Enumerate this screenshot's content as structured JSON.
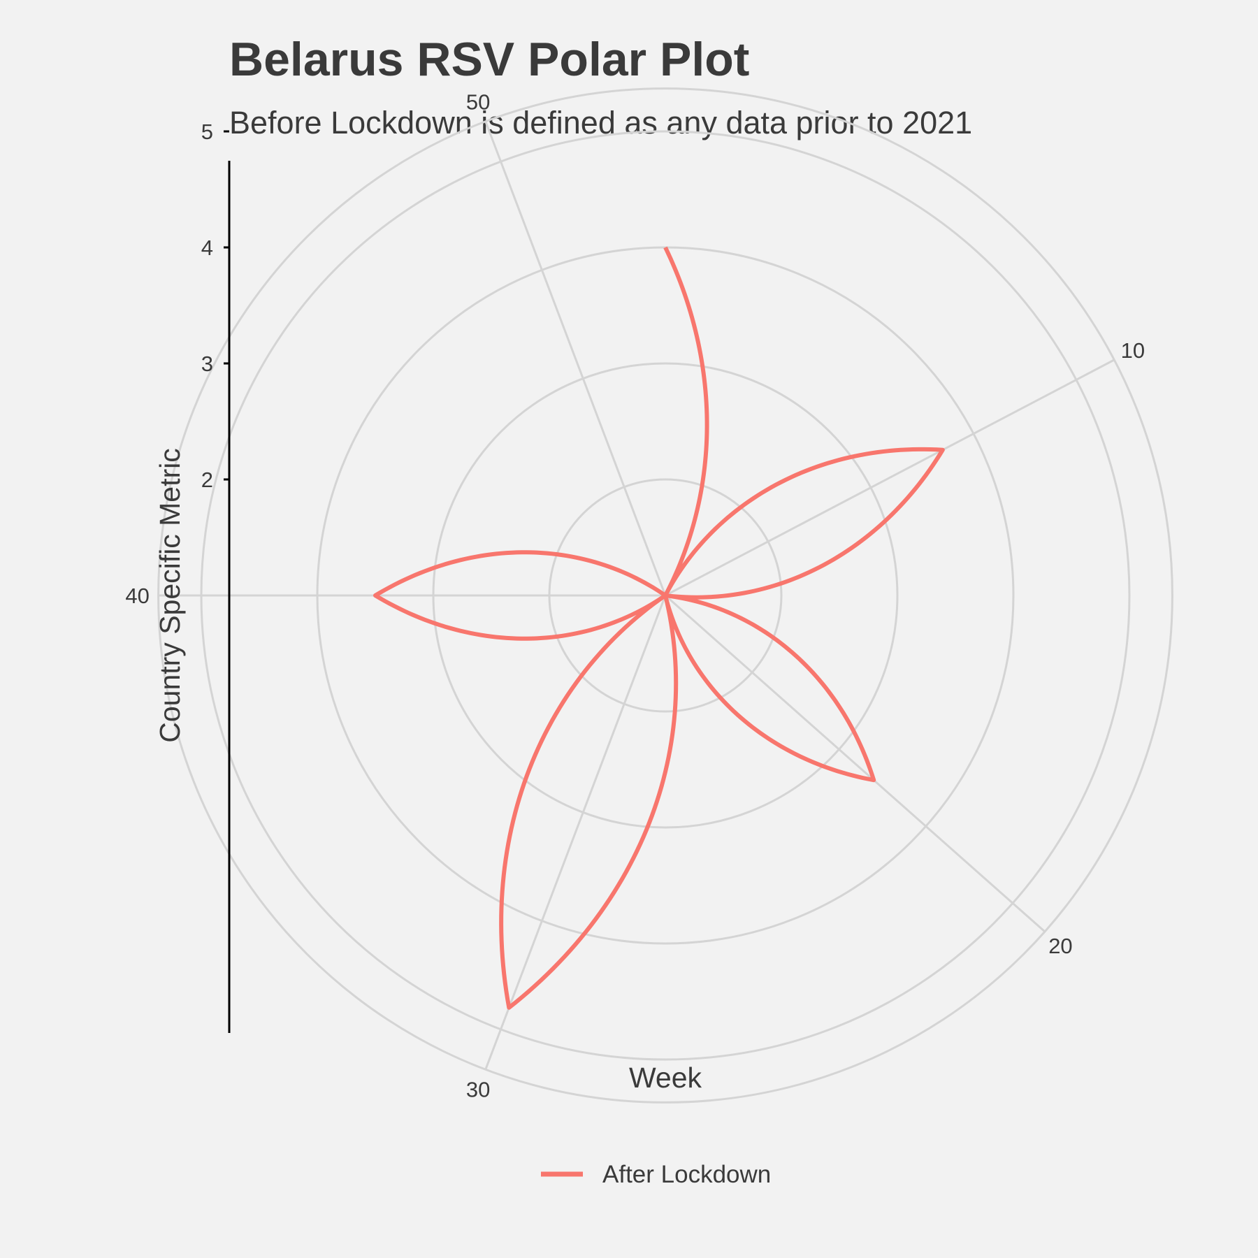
{
  "chart_data": {
    "type": "line",
    "coordinate_system": "polar",
    "title": "Belarus RSV Polar Plot",
    "subtitle": "Before Lockdown is defined as any data prior to 2021",
    "xlabel": "Week",
    "ylabel": "Country Specific Metric",
    "theta_range": [
      1,
      53
    ],
    "theta_ticks": [
      10,
      20,
      30,
      40,
      50
    ],
    "r_range": [
      1,
      5.7
    ],
    "r_ticks": [
      2,
      3,
      4,
      5
    ],
    "r_grid": [
      2,
      3,
      4,
      5,
      5.37
    ],
    "grid": true,
    "legend_position": "bottom",
    "series": [
      {
        "name": "After Lockdown",
        "color": "#F8766D",
        "points": [
          {
            "week": 1,
            "value": 4
          },
          {
            "week": 5,
            "value": 1
          },
          {
            "week": 10,
            "value": 3.7
          },
          {
            "week": 15,
            "value": 1
          },
          {
            "week": 20,
            "value": 3.4
          },
          {
            "week": 25,
            "value": 1
          },
          {
            "week": 30,
            "value": 4.8
          },
          {
            "week": 35,
            "value": 1
          },
          {
            "week": 40,
            "value": 3.5
          },
          {
            "week": 45,
            "value": 1
          }
        ]
      }
    ]
  }
}
